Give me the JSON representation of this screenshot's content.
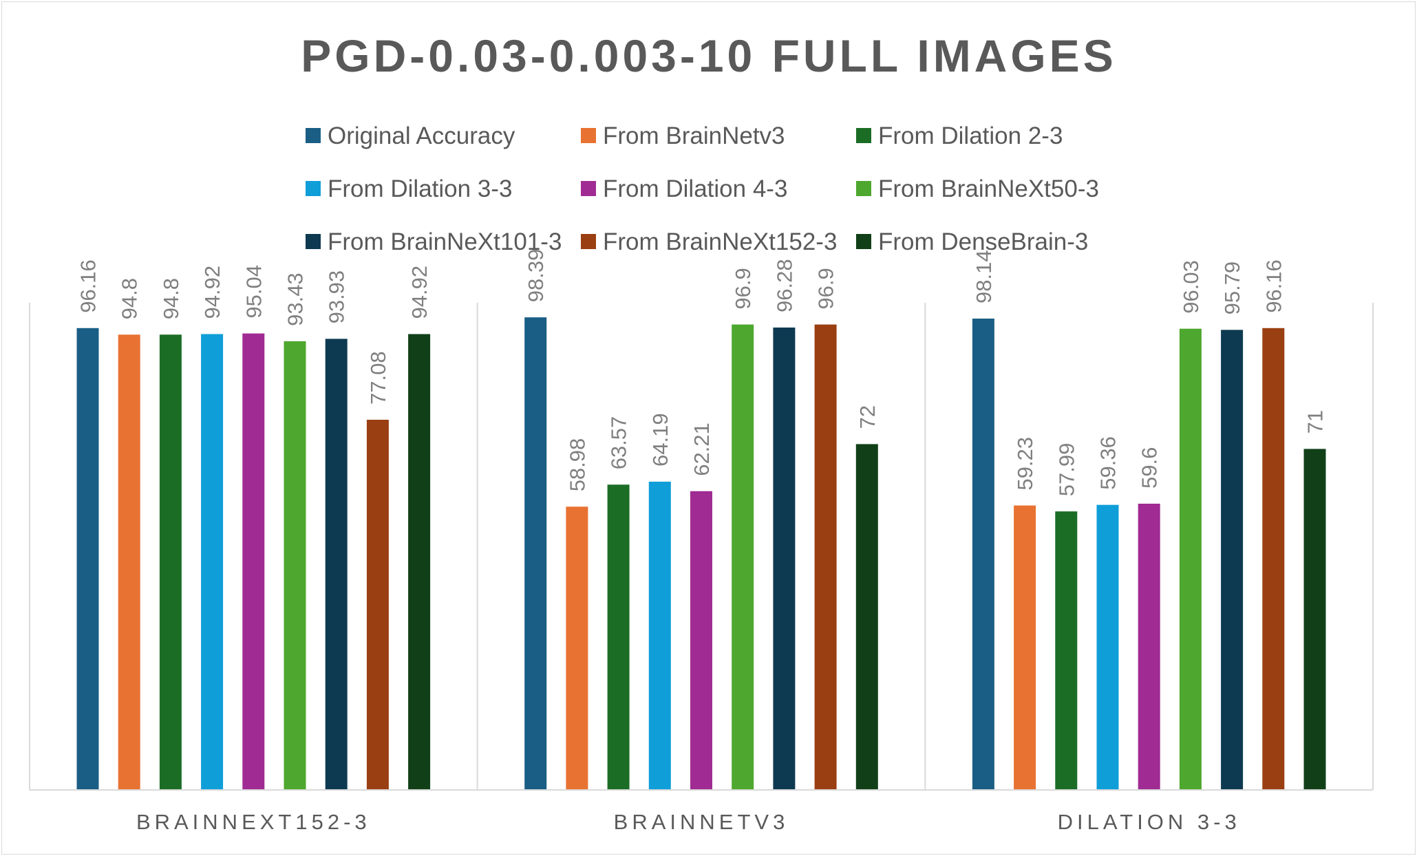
{
  "chart_data": {
    "type": "bar",
    "title": "PGD-0.03-0.003-10 FULL IMAGES",
    "categories": [
      "BRAINNEXT152-3",
      "BRAINNETV3",
      "DILATION 3-3"
    ],
    "series": [
      {
        "name": "Original Accuracy",
        "color": "#1a5e85",
        "values": [
          96.16,
          98.39,
          98.14
        ]
      },
      {
        "name": "From BrainNetv3",
        "color": "#e87232",
        "values": [
          94.8,
          58.98,
          59.23
        ]
      },
      {
        "name": "From Dilation 2-3",
        "color": "#1b6d26",
        "values": [
          94.8,
          63.57,
          57.99
        ]
      },
      {
        "name": "From Dilation 3-3",
        "color": "#109ed9",
        "values": [
          94.92,
          64.19,
          59.36
        ]
      },
      {
        "name": "From Dilation 4-3",
        "color": "#a02b93",
        "values": [
          95.04,
          62.21,
          59.6
        ]
      },
      {
        "name": "From BrainNeXt50-3",
        "color": "#4ea72e",
        "values": [
          93.43,
          96.9,
          96.03
        ]
      },
      {
        "name": "From BrainNeXt101-3",
        "color": "#0e3a51",
        "values": [
          93.93,
          96.28,
          95.79
        ]
      },
      {
        "name": "From BrainNeXt152-3",
        "color": "#9a3f12",
        "values": [
          77.08,
          96.9,
          96.16
        ]
      },
      {
        "name": "From DenseBrain-3",
        "color": "#114018",
        "values": [
          94.92,
          72,
          71
        ]
      }
    ],
    "data_labels": [
      [
        "96.16",
        "98.39",
        "98.14"
      ],
      [
        "94.8",
        "58.98",
        "59.23"
      ],
      [
        "94.8",
        "63.57",
        "57.99"
      ],
      [
        "94.92",
        "64.19",
        "59.36"
      ],
      [
        "95.04",
        "62.21",
        "59.6"
      ],
      [
        "93.43",
        "96.9",
        "96.03"
      ],
      [
        "93.93",
        "96.28",
        "95.79"
      ],
      [
        "77.08",
        "96.9",
        "96.16"
      ],
      [
        "94.92",
        "72",
        "71"
      ]
    ],
    "ylim": [
      0,
      100
    ],
    "legend_position": "top",
    "grid": "vertical category separators only",
    "value_axis_visible": false
  }
}
